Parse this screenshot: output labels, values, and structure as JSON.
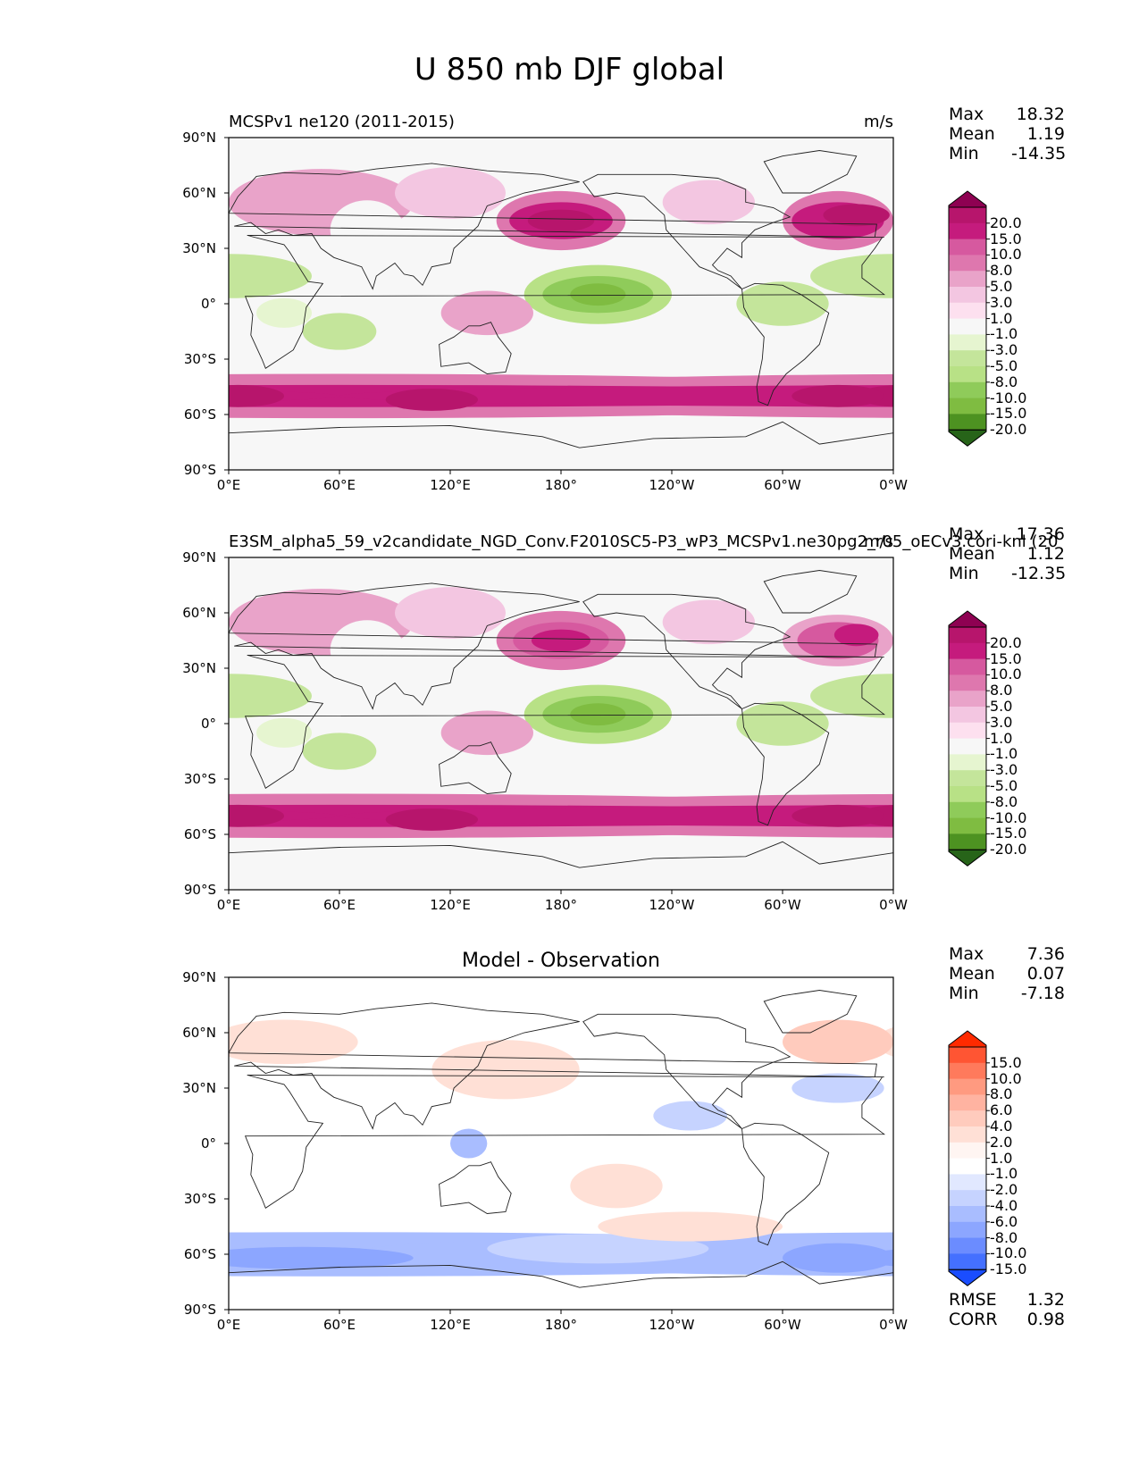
{
  "figure": {
    "title": "U 850 mb DJF global"
  },
  "panels": [
    {
      "title": "MCSPv1 ne120 (2011-2015)",
      "units": "m/s",
      "stats": [
        {
          "label": "Max",
          "value": "18.32"
        },
        {
          "label": "Mean",
          "value": "1.19"
        },
        {
          "label": "Min",
          "value": "-14.35"
        }
      ],
      "colorbar_levels": [
        "20.0",
        "15.0",
        "10.0",
        "8.0",
        "5.0",
        "3.0",
        "1.0",
        "-1.0",
        "-3.0",
        "-5.0",
        "-8.0",
        "-10.0",
        "-15.0",
        "-20.0"
      ],
      "colorbar_colors": [
        "#8e0152",
        "#b7156c",
        "#c51b7d",
        "#d6599f",
        "#de77ae",
        "#e9a3c9",
        "#f3c6e1",
        "#fde0ef",
        "#f7f7f7",
        "#e6f5d0",
        "#c4e59b",
        "#b8e186",
        "#8fcb5a",
        "#7fbc41",
        "#4d9221",
        "#276419"
      ]
    },
    {
      "title": "E3SM_alpha5_59_v2candidate_NGD_Conv.F2010SC5-P3_wP3_MCSPv1.ne30pg2_r05_oECv3.cori-knl (20",
      "units": "m/s",
      "stats": [
        {
          "label": "Max",
          "value": "17.36"
        },
        {
          "label": "Mean",
          "value": "1.12"
        },
        {
          "label": "Min",
          "value": "-12.35"
        }
      ],
      "colorbar_levels": [
        "20.0",
        "15.0",
        "10.0",
        "8.0",
        "5.0",
        "3.0",
        "1.0",
        "-1.0",
        "-3.0",
        "-5.0",
        "-8.0",
        "-10.0",
        "-15.0",
        "-20.0"
      ],
      "colorbar_colors": [
        "#8e0152",
        "#b7156c",
        "#c51b7d",
        "#d6599f",
        "#de77ae",
        "#e9a3c9",
        "#f3c6e1",
        "#fde0ef",
        "#f7f7f7",
        "#e6f5d0",
        "#c4e59b",
        "#b8e186",
        "#8fcb5a",
        "#7fbc41",
        "#4d9221",
        "#276419"
      ]
    },
    {
      "title": "Model - Observation",
      "units": "",
      "stats": [
        {
          "label": "Max",
          "value": "7.36"
        },
        {
          "label": "Mean",
          "value": "0.07"
        },
        {
          "label": "Min",
          "value": "-7.18"
        }
      ],
      "extra_stats": [
        {
          "label": "RMSE",
          "value": "1.32"
        },
        {
          "label": "CORR",
          "value": "0.98"
        }
      ],
      "colorbar_levels": [
        "15.0",
        "10.0",
        "8.0",
        "6.0",
        "4.0",
        "2.0",
        "1.0",
        "-1.0",
        "-2.0",
        "-4.0",
        "-6.0",
        "-8.0",
        "-10.0",
        "-15.0"
      ],
      "colorbar_colors": [
        "#ff2a00",
        "#ff5533",
        "#ff7a5c",
        "#ff9a80",
        "#ffb3a1",
        "#ffcbbd",
        "#ffe0d6",
        "#fff5f2",
        "#ffffff",
        "#e1e8ff",
        "#c6d3ff",
        "#a9bdff",
        "#8ca6ff",
        "#6b8cff",
        "#4470ff",
        "#1a4dff"
      ]
    }
  ],
  "axes": {
    "lat_ticks": [
      "90°N",
      "60°N",
      "30°N",
      "0°",
      "30°S",
      "60°S",
      "90°S"
    ],
    "lon_ticks": [
      "0°E",
      "60°E",
      "120°E",
      "180°",
      "120°W",
      "60°W",
      "0°W"
    ]
  }
}
